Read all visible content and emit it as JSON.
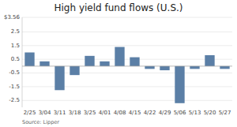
{
  "chart_data": {
    "type": "bar",
    "title": "High yield fund flows (U.S.)",
    "source": "Source: Lipper",
    "categories": [
      "2/25",
      "3/04",
      "3/11",
      "3/18",
      "3/25",
      "4/01",
      "4/08",
      "4/15",
      "4/22",
      "4/29",
      "5/06",
      "5/13",
      "5/20",
      "5/27"
    ],
    "values": [
      1.0,
      0.35,
      -1.75,
      -0.65,
      0.75,
      0.35,
      1.4,
      0.65,
      -0.2,
      -0.3,
      -2.7,
      -0.2,
      0.8,
      -0.2
    ],
    "color": "#5b7fa6",
    "ylim": [
      -3.0,
      3.56
    ],
    "yticks": [
      {
        "value": 3.56,
        "label": "$3.56"
      },
      2.5,
      1.5,
      0.5,
      -0.5,
      -1.5,
      -2.5
    ],
    "grid": true
  }
}
